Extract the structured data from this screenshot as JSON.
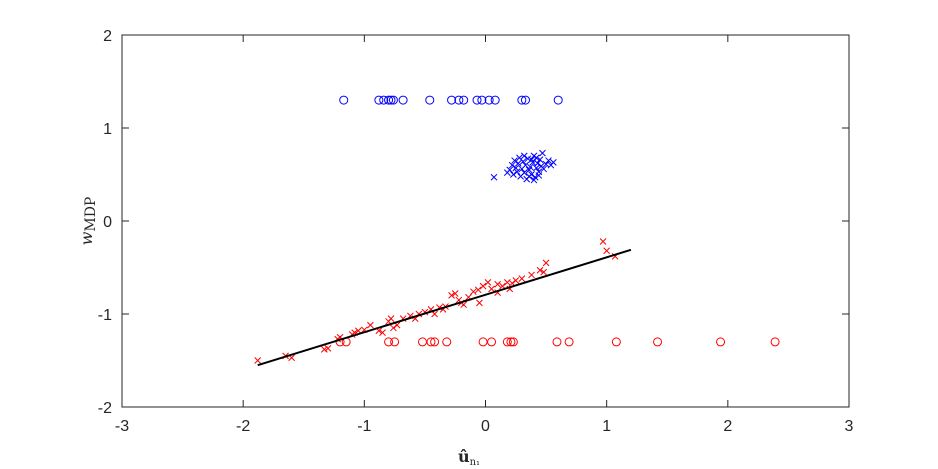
{
  "chart_data": {
    "type": "scatter",
    "xlabel": "û",
    "xlabel_sub": "n₁",
    "ylabel": "w",
    "ylabel_sub": "MDP",
    "xlim": [
      -3,
      3
    ],
    "ylim": [
      -2,
      2
    ],
    "xticks": [
      -3,
      -2,
      -1,
      0,
      1,
      2,
      3
    ],
    "yticks": [
      -2,
      -1,
      0,
      1,
      2
    ],
    "xtick_labels": [
      "-3",
      "-2",
      "-1",
      "0",
      "1",
      "2",
      "3"
    ],
    "ytick_labels": [
      "-2",
      "-1",
      "0",
      "1",
      "2"
    ],
    "grid": false,
    "series": [
      {
        "marker": "circle",
        "color": "#0000ff",
        "points": [
          [
            -1.17,
            1.3
          ],
          [
            -0.88,
            1.3
          ],
          [
            -0.84,
            1.3
          ],
          [
            -0.8,
            1.3
          ],
          [
            -0.78,
            1.3
          ],
          [
            -0.76,
            1.3
          ],
          [
            -0.68,
            1.3
          ],
          [
            -0.46,
            1.3
          ],
          [
            -0.28,
            1.3
          ],
          [
            -0.22,
            1.3
          ],
          [
            -0.18,
            1.3
          ],
          [
            -0.07,
            1.3
          ],
          [
            -0.03,
            1.3
          ],
          [
            0.03,
            1.3
          ],
          [
            0.08,
            1.3
          ],
          [
            0.3,
            1.3
          ],
          [
            0.33,
            1.3
          ],
          [
            0.6,
            1.3
          ]
        ]
      },
      {
        "marker": "cross",
        "color": "#0000ff",
        "points": [
          [
            0.07,
            0.47
          ],
          [
            0.18,
            0.52
          ],
          [
            0.2,
            0.55
          ],
          [
            0.22,
            0.6
          ],
          [
            0.23,
            0.5
          ],
          [
            0.24,
            0.65
          ],
          [
            0.25,
            0.57
          ],
          [
            0.26,
            0.53
          ],
          [
            0.27,
            0.62
          ],
          [
            0.28,
            0.68
          ],
          [
            0.29,
            0.48
          ],
          [
            0.3,
            0.56
          ],
          [
            0.31,
            0.64
          ],
          [
            0.32,
            0.52
          ],
          [
            0.33,
            0.6
          ],
          [
            0.34,
            0.45
          ],
          [
            0.35,
            0.67
          ],
          [
            0.36,
            0.55
          ],
          [
            0.37,
            0.58
          ],
          [
            0.38,
            0.5
          ],
          [
            0.39,
            0.63
          ],
          [
            0.4,
            0.7
          ],
          [
            0.41,
            0.47
          ],
          [
            0.42,
            0.57
          ],
          [
            0.43,
            0.62
          ],
          [
            0.44,
            0.53
          ],
          [
            0.45,
            0.66
          ],
          [
            0.46,
            0.59
          ],
          [
            0.47,
            0.73
          ],
          [
            0.48,
            0.56
          ],
          [
            0.5,
            0.61
          ],
          [
            0.52,
            0.65
          ],
          [
            0.54,
            0.6
          ],
          [
            0.56,
            0.63
          ],
          [
            0.36,
            0.48
          ],
          [
            0.4,
            0.44
          ],
          [
            0.44,
            0.49
          ],
          [
            0.32,
            0.7
          ],
          [
            0.38,
            0.66
          ],
          [
            0.42,
            0.68
          ]
        ]
      },
      {
        "marker": "circle",
        "color": "#ff0000",
        "points": [
          [
            -1.2,
            -1.3
          ],
          [
            -1.15,
            -1.3
          ],
          [
            -0.8,
            -1.3
          ],
          [
            -0.75,
            -1.3
          ],
          [
            -0.52,
            -1.3
          ],
          [
            -0.45,
            -1.3
          ],
          [
            -0.42,
            -1.3
          ],
          [
            -0.32,
            -1.3
          ],
          [
            -0.02,
            -1.3
          ],
          [
            0.05,
            -1.3
          ],
          [
            0.18,
            -1.3
          ],
          [
            0.21,
            -1.3
          ],
          [
            0.23,
            -1.3
          ],
          [
            0.59,
            -1.3
          ],
          [
            0.69,
            -1.3
          ],
          [
            1.08,
            -1.3
          ],
          [
            1.42,
            -1.3
          ],
          [
            1.94,
            -1.3
          ],
          [
            2.39,
            -1.3
          ]
        ]
      },
      {
        "marker": "cross",
        "color": "#ff0000",
        "points": [
          [
            -1.88,
            -1.5
          ],
          [
            -1.65,
            -1.45
          ],
          [
            -1.6,
            -1.47
          ],
          [
            -1.33,
            -1.38
          ],
          [
            -1.3,
            -1.37
          ],
          [
            -1.22,
            -1.27
          ],
          [
            -1.2,
            -1.25
          ],
          [
            -1.1,
            -1.22
          ],
          [
            -1.08,
            -1.2
          ],
          [
            -1.05,
            -1.18
          ],
          [
            -0.95,
            -1.12
          ],
          [
            -0.88,
            -1.18
          ],
          [
            -0.85,
            -1.2
          ],
          [
            -0.8,
            -1.08
          ],
          [
            -0.78,
            -1.05
          ],
          [
            -0.76,
            -1.15
          ],
          [
            -0.73,
            -1.12
          ],
          [
            -0.68,
            -1.05
          ],
          [
            -0.62,
            -1.02
          ],
          [
            -0.58,
            -1.05
          ],
          [
            -0.55,
            -1.0
          ],
          [
            -0.5,
            -0.98
          ],
          [
            -0.45,
            -0.95
          ],
          [
            -0.42,
            -1.0
          ],
          [
            -0.38,
            -0.93
          ],
          [
            -0.33,
            -0.92
          ],
          [
            -0.28,
            -0.8
          ],
          [
            -0.25,
            -0.78
          ],
          [
            -0.22,
            -0.85
          ],
          [
            -0.18,
            -0.9
          ],
          [
            -0.14,
            -0.82
          ],
          [
            -0.1,
            -0.76
          ],
          [
            -0.06,
            -0.74
          ],
          [
            -0.02,
            -0.7
          ],
          [
            0.02,
            -0.66
          ],
          [
            0.05,
            -0.73
          ],
          [
            0.1,
            -0.68
          ],
          [
            0.14,
            -0.7
          ],
          [
            0.18,
            -0.66
          ],
          [
            0.22,
            -0.67
          ],
          [
            0.25,
            -0.64
          ],
          [
            0.3,
            -0.62
          ],
          [
            0.38,
            -0.58
          ],
          [
            0.45,
            -0.53
          ],
          [
            0.48,
            -0.55
          ],
          [
            0.5,
            -0.45
          ],
          [
            0.97,
            -0.22
          ],
          [
            1.0,
            -0.32
          ],
          [
            1.07,
            -0.38
          ],
          [
            -0.05,
            -0.88
          ],
          [
            -0.35,
            -0.95
          ],
          [
            0.1,
            -0.77
          ],
          [
            -0.2,
            -0.88
          ],
          [
            0.2,
            -0.73
          ],
          [
            -1.0,
            -1.17
          ]
        ]
      },
      {
        "marker": "line",
        "color": "#000000",
        "points": [
          [
            -1.88,
            -1.55
          ],
          [
            1.2,
            -0.31
          ]
        ]
      }
    ]
  }
}
